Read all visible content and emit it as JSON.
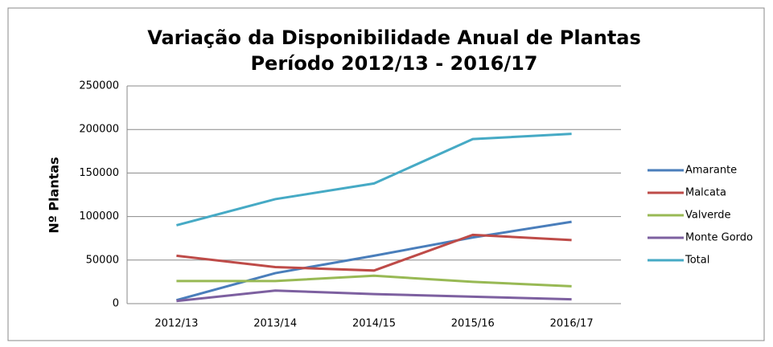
{
  "chart_data": {
    "type": "line",
    "title": "Variação da Disponibilidade Anual de Plantas",
    "subtitle": "Período 2012/13 - 2016/17",
    "y_label": "Nº Plantas",
    "categories": [
      "2012/13",
      "2013/14",
      "2014/15",
      "2015/16",
      "2016/17"
    ],
    "series": [
      {
        "name": "Amarante",
        "color": "#4a7ebb",
        "values": [
          4000,
          35000,
          55000,
          76000,
          94000
        ]
      },
      {
        "name": "Malcata",
        "color": "#be4b48",
        "values": [
          55000,
          42000,
          38000,
          79000,
          73000
        ]
      },
      {
        "name": "Valverde",
        "color": "#98b954",
        "values": [
          26000,
          26000,
          32000,
          25000,
          20000
        ]
      },
      {
        "name": "Monte Gordo",
        "color": "#7d60a0",
        "values": [
          3000,
          15000,
          11000,
          8000,
          5000
        ]
      },
      {
        "name": "Total",
        "color": "#46aac5",
        "values": [
          90000,
          120000,
          138000,
          189000,
          195000
        ]
      }
    ],
    "ylim": [
      0,
      250000
    ],
    "yticks": [
      0,
      50000,
      100000,
      150000,
      200000,
      250000
    ],
    "grid": true,
    "legend": "right"
  }
}
